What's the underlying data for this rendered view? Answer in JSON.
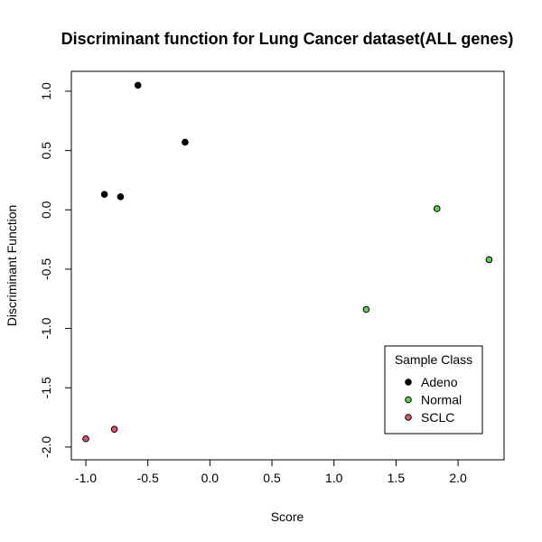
{
  "chart_data": {
    "type": "scatter",
    "title": "Discriminant function for Lung Cancer dataset(ALL genes)",
    "xlabel": "Score",
    "ylabel": "Discriminant Function",
    "xlim": [
      -1.1,
      2.4
    ],
    "ylim": [
      -2.05,
      1.1
    ],
    "x_ticks": [
      -1.0,
      -0.5,
      0.0,
      0.5,
      1.0,
      1.5,
      2.0
    ],
    "x_tick_labels": [
      "-1.0",
      "-0.5",
      "0.0",
      "0.5",
      "1.0",
      "1.5",
      "2.0"
    ],
    "y_ticks": [
      -2.0,
      -1.5,
      -1.0,
      -0.5,
      0.0,
      0.5,
      1.0
    ],
    "y_tick_labels": [
      "-2.0",
      "-1.5",
      "-1.0",
      "-0.5",
      "0.0",
      "0.5",
      "1.0"
    ],
    "grid": false,
    "legend": {
      "title": "Sample Class",
      "placement": "bottom-right"
    },
    "series": [
      {
        "name": "Adeno",
        "color": "#000000",
        "points": [
          {
            "x": -0.58,
            "y": 1.05
          },
          {
            "x": -0.2,
            "y": 0.57
          },
          {
            "x": -0.85,
            "y": 0.13
          },
          {
            "x": -0.72,
            "y": 0.11
          }
        ]
      },
      {
        "name": "Normal",
        "color": "#61D04F",
        "points": [
          {
            "x": 1.83,
            "y": 0.01
          },
          {
            "x": 2.25,
            "y": -0.42
          },
          {
            "x": 1.26,
            "y": -0.84
          }
        ]
      },
      {
        "name": "SCLC",
        "color": "#DF536B",
        "points": [
          {
            "x": -0.77,
            "y": -1.85
          },
          {
            "x": -1.0,
            "y": -1.93
          }
        ]
      }
    ]
  }
}
